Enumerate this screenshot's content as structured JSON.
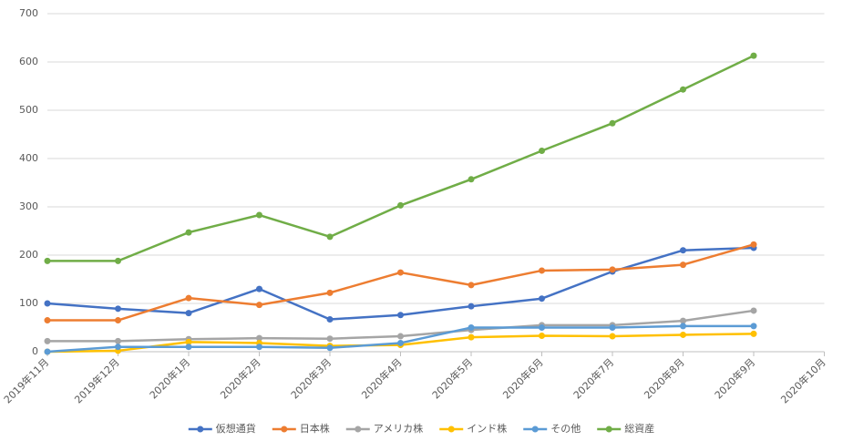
{
  "chart_data": {
    "type": "line",
    "categories": [
      "2019年11月",
      "2019年12月",
      "2020年1月",
      "2020年2月",
      "2020年3月",
      "2020年4月",
      "2020年5月",
      "2020年6月",
      "2020年7月",
      "2020年8月",
      "2020年9月",
      "2020年10月"
    ],
    "series": [
      {
        "name": "仮想通貨",
        "color": "#4472c4",
        "values": [
          100,
          89,
          80,
          130,
          67,
          76,
          94,
          110,
          166,
          210,
          215,
          null
        ]
      },
      {
        "name": "日本株",
        "color": "#ed7d31",
        "values": [
          65,
          65,
          111,
          97,
          122,
          164,
          138,
          168,
          170,
          180,
          222,
          null
        ]
      },
      {
        "name": "アメリカ株",
        "color": "#a5a5a5",
        "values": [
          22,
          22,
          26,
          28,
          27,
          32,
          45,
          55,
          55,
          64,
          85,
          null
        ]
      },
      {
        "name": "インド株",
        "color": "#ffc000",
        "values": [
          0,
          2,
          20,
          18,
          12,
          14,
          30,
          33,
          32,
          35,
          37,
          null
        ]
      },
      {
        "name": "その他",
        "color": "#5b9bd5",
        "values": [
          0,
          10,
          10,
          10,
          8,
          18,
          50,
          50,
          50,
          53,
          53,
          null
        ]
      },
      {
        "name": "総資産",
        "color": "#70ad47",
        "values": [
          188,
          188,
          247,
          283,
          238,
          303,
          357,
          416,
          473,
          543,
          613,
          null
        ]
      }
    ],
    "ylim": [
      0,
      700
    ],
    "yticks": [
      0,
      100,
      200,
      300,
      400,
      500,
      600,
      700
    ],
    "grid": true,
    "legend": "bottom"
  }
}
